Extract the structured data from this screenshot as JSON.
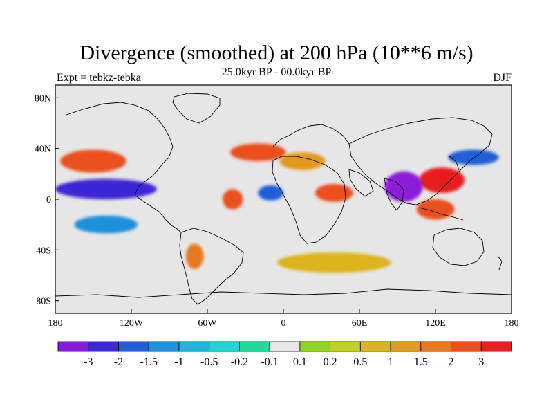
{
  "header": {
    "title": "Divergence (smoothed) at 200 hPa (10**6 m/s)",
    "subtitle": "25.0kyr BP - 00.0kyr BP",
    "experiment": "Expt = tebkz-tebka",
    "season": "DJF"
  },
  "map": {
    "projection": "cylindrical equidistant",
    "lon_range": [
      -180,
      180
    ],
    "lat_range": [
      -90,
      90
    ],
    "lon_ticks": [
      {
        "lon": -180,
        "label": "180"
      },
      {
        "lon": -120,
        "label": "120W"
      },
      {
        "lon": -60,
        "label": "60W"
      },
      {
        "lon": 0,
        "label": "0"
      },
      {
        "lon": 60,
        "label": "60E"
      },
      {
        "lon": 120,
        "label": "120E"
      },
      {
        "lon": 180,
        "label": "180"
      }
    ],
    "lat_ticks": [
      {
        "lat": 80,
        "label": "80N"
      },
      {
        "lat": 40,
        "label": "40N"
      },
      {
        "lat": 0,
        "label": "0"
      },
      {
        "lat": -40,
        "label": "40S"
      },
      {
        "lat": -80,
        "label": "80S"
      }
    ],
    "background_color": "#e6e6e6",
    "features": [
      {
        "name": "central-pacific-negative",
        "lon": -140,
        "lat": 8,
        "rx": 40,
        "ry": 8,
        "level": 1
      },
      {
        "name": "north-pacific-positive",
        "lon": -150,
        "lat": 30,
        "rx": 26,
        "ry": 9,
        "level": 13
      },
      {
        "name": "north-atlantic-positive",
        "lon": -20,
        "lat": 37,
        "rx": 22,
        "ry": 7,
        "level": 13
      },
      {
        "name": "north-africa-positive",
        "lon": 15,
        "lat": 30,
        "rx": 18,
        "ry": 7,
        "level": 11
      },
      {
        "name": "east-asia-positive",
        "lon": 125,
        "lat": 15,
        "rx": 18,
        "ry": 10,
        "level": 14
      },
      {
        "name": "north-pacific-west-negative",
        "lon": 150,
        "lat": 33,
        "rx": 20,
        "ry": 6,
        "level": 2
      },
      {
        "name": "indian-ocean-negative",
        "lon": 95,
        "lat": 10,
        "rx": 15,
        "ry": 12,
        "level": 0
      },
      {
        "name": "maritime-continent-positive",
        "lon": 120,
        "lat": -8,
        "rx": 15,
        "ry": 8,
        "level": 13
      },
      {
        "name": "africa-equatorial-positive",
        "lon": 40,
        "lat": 5,
        "rx": 15,
        "ry": 7,
        "level": 13
      },
      {
        "name": "brazil-positive",
        "lon": -40,
        "lat": 0,
        "rx": 8,
        "ry": 8,
        "level": 13
      },
      {
        "name": "south-atlantic-negative",
        "lon": -10,
        "lat": 5,
        "rx": 10,
        "ry": 6,
        "level": 2
      },
      {
        "name": "southern-ocean-positive",
        "lon": 40,
        "lat": -50,
        "rx": 45,
        "ry": 8,
        "level": 10
      },
      {
        "name": "south-pacific-negative",
        "lon": -140,
        "lat": -20,
        "rx": 25,
        "ry": 7,
        "level": 3
      },
      {
        "name": "patagonia-positive",
        "lon": -70,
        "lat": -45,
        "rx": 7,
        "ry": 10,
        "level": 12
      }
    ]
  },
  "colorbar": {
    "colors": [
      "#8c1ad9",
      "#3c28d6",
      "#1f5fd8",
      "#1f90dd",
      "#1fb4e0",
      "#1fd4d6",
      "#1fdc9a",
      "#e6e6e6",
      "#8fd41f",
      "#c3d11f",
      "#dcb41f",
      "#e39a1f",
      "#e8781f",
      "#eb4f1f",
      "#e81f1f"
    ],
    "labels": [
      "-3",
      "-2",
      "-1.5",
      "-1",
      "-0.5",
      "-0.2",
      "-0.1",
      "0.1",
      "0.2",
      "0.5",
      "1",
      "1.5",
      "2",
      "3"
    ]
  }
}
